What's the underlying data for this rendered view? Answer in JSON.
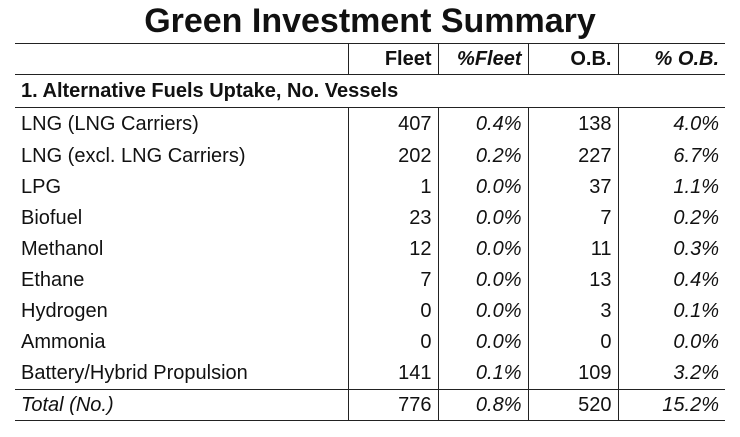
{
  "title": "Green Investment Summary",
  "headers": {
    "label": "",
    "fleet": "Fleet",
    "pct_fleet": "%Fleet",
    "ob": "O.B.",
    "pct_ob": "% O.B."
  },
  "section_title": "1. Alternative Fuels Uptake, No. Vessels",
  "rows": [
    {
      "label": "LNG (LNG Carriers)",
      "fleet": "407",
      "pct_fleet": "0.4%",
      "ob": "138",
      "pct_ob": "4.0%"
    },
    {
      "label": "LNG (excl. LNG Carriers)",
      "fleet": "202",
      "pct_fleet": "0.2%",
      "ob": "227",
      "pct_ob": "6.7%"
    },
    {
      "label": "LPG",
      "fleet": "1",
      "pct_fleet": "0.0%",
      "ob": "37",
      "pct_ob": "1.1%"
    },
    {
      "label": "Biofuel",
      "fleet": "23",
      "pct_fleet": "0.0%",
      "ob": "7",
      "pct_ob": "0.2%"
    },
    {
      "label": "Methanol",
      "fleet": "12",
      "pct_fleet": "0.0%",
      "ob": "11",
      "pct_ob": "0.3%"
    },
    {
      "label": "Ethane",
      "fleet": "7",
      "pct_fleet": "0.0%",
      "ob": "13",
      "pct_ob": "0.4%"
    },
    {
      "label": "Hydrogen",
      "fleet": "0",
      "pct_fleet": "0.0%",
      "ob": "3",
      "pct_ob": "0.1%"
    },
    {
      "label": "Ammonia",
      "fleet": "0",
      "pct_fleet": "0.0%",
      "ob": "0",
      "pct_ob": "0.0%"
    },
    {
      "label": "Battery/Hybrid Propulsion",
      "fleet": "141",
      "pct_fleet": "0.1%",
      "ob": "109",
      "pct_ob": "3.2%"
    }
  ],
  "total": {
    "label": "Total (No.)",
    "fleet": "776",
    "pct_fleet": "0.8%",
    "ob": "520",
    "pct_ob": "15.2%"
  }
}
